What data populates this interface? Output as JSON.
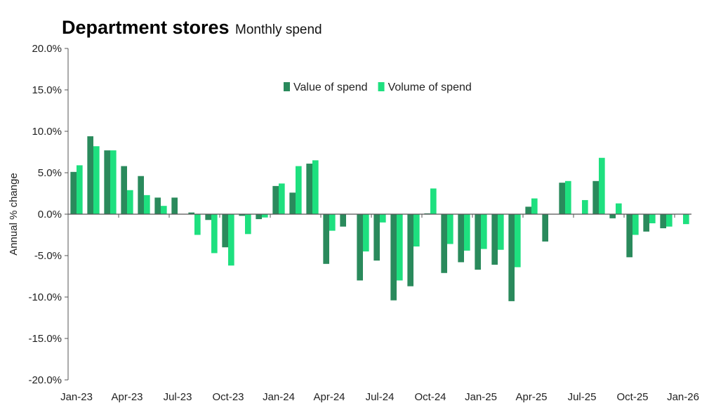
{
  "chart_data": {
    "type": "bar",
    "title": "Department stores",
    "subtitle": "Monthly spend",
    "ylabel": "Annual % change",
    "xlabel": "",
    "ylim": [
      -20,
      20
    ],
    "yticks": [
      20,
      15,
      10,
      5,
      0,
      -5,
      -10,
      -15,
      -20
    ],
    "ytick_labels": [
      "20.0%",
      "15.0%",
      "10.0%",
      "5.0%",
      "0.0%",
      "-5.0%",
      "-10.0%",
      "-15.0%",
      "-20.0%"
    ],
    "grid": false,
    "legend_placement": "top-center",
    "categories": [
      "Jan-23",
      "Feb-23",
      "Mar-23",
      "Apr-23",
      "May-23",
      "Jun-23",
      "Jul-23",
      "Aug-23",
      "Sep-23",
      "Oct-23",
      "Nov-23",
      "Dec-23",
      "Jan-24",
      "Feb-24",
      "Mar-24",
      "Apr-24",
      "May-24",
      "Jun-24",
      "Jul-24",
      "Aug-24",
      "Sep-24",
      "Oct-24",
      "Nov-24",
      "Dec-24",
      "Jan-25",
      "Feb-25",
      "Mar-25",
      "Apr-25",
      "May-25",
      "Jun-25",
      "Jul-25",
      "Aug-25",
      "Sep-25",
      "Oct-25",
      "Nov-25",
      "Dec-25",
      "Jan-26"
    ],
    "xtick_labels": [
      "Jan-23",
      "Apr-23",
      "Jul-23",
      "Oct-23",
      "Jan-24",
      "Apr-24",
      "Jul-24",
      "Oct-24",
      "Jan-25",
      "Apr-25",
      "Jul-25",
      "Oct-25",
      "Jan-26"
    ],
    "series": [
      {
        "name": "Value of spend",
        "color": "#2a8a5c",
        "values": [
          5.1,
          9.4,
          7.7,
          5.8,
          4.6,
          2.0,
          2.0,
          0.2,
          -0.7,
          -4.0,
          -0.2,
          -0.6,
          3.4,
          2.6,
          6.1,
          -6.0,
          -1.5,
          -8.0,
          -5.6,
          -10.4,
          -8.7,
          0.1,
          -7.1,
          -5.8,
          -6.7,
          -6.1,
          -10.5,
          0.9,
          -3.3,
          3.8,
          0.0,
          4.0,
          -0.5,
          -5.2,
          -2.1,
          -1.7,
          null
        ]
      },
      {
        "name": "Volume of spend",
        "color": "#1ee07f",
        "values": [
          5.9,
          8.2,
          7.7,
          2.9,
          2.3,
          1.0,
          0.0,
          -2.5,
          -4.7,
          -6.2,
          -2.4,
          -0.4,
          3.7,
          5.8,
          6.5,
          -2.0,
          0.0,
          -4.5,
          -1.0,
          -8.0,
          -3.9,
          3.1,
          -3.6,
          -4.4,
          -4.2,
          -4.3,
          -6.4,
          1.9,
          0.0,
          4.0,
          1.7,
          6.8,
          1.3,
          -2.5,
          -1.1,
          -1.5,
          -1.2
        ]
      }
    ]
  }
}
